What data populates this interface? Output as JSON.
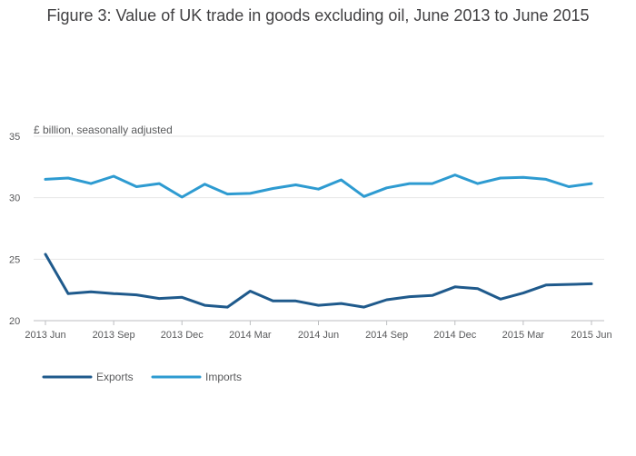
{
  "title": "Figure 3: Value of UK trade in goods excluding oil, June 2013 to June 2015",
  "chart_data": {
    "type": "line",
    "title": "Figure 3: Value of UK trade in goods excluding oil, June 2013 to June 2015",
    "ylabel": "£ billion, seasonally adjusted",
    "xlabel": "",
    "ylim": [
      20,
      35
    ],
    "yticks": [
      "20",
      "25",
      "30",
      "35"
    ],
    "x": [
      "2013 Jun",
      "2013 Jul",
      "2013 Aug",
      "2013 Sep",
      "2013 Oct",
      "2013 Nov",
      "2013 Dec",
      "2014 Jan",
      "2014 Feb",
      "2014 Mar",
      "2014 Apr",
      "2014 May",
      "2014 Jun",
      "2014 Jul",
      "2014 Aug",
      "2014 Sep",
      "2014 Oct",
      "2014 Nov",
      "2014 Dec",
      "2015 Jan",
      "2015 Feb",
      "2015 Mar",
      "2015 Apr",
      "2015 May",
      "2015 Jun"
    ],
    "xtick_labels": [
      "2013 Jun",
      "2013 Sep",
      "2013 Dec",
      "2014 Mar",
      "2014 Jun",
      "2014 Sep",
      "2014 Dec",
      "2015 Mar",
      "2015 Jun"
    ],
    "grid": true,
    "legend": "bottom-left",
    "series": [
      {
        "name": "Exports",
        "color": "#1f5a8c",
        "values": [
          25.4,
          22.2,
          22.35,
          22.2,
          22.1,
          21.8,
          21.9,
          21.25,
          21.1,
          22.4,
          21.6,
          21.6,
          21.25,
          21.4,
          21.1,
          21.7,
          21.95,
          22.05,
          22.75,
          22.6,
          21.75,
          22.25,
          22.9,
          22.95,
          23.0
        ]
      },
      {
        "name": "Imports",
        "color": "#2e9bd1",
        "values": [
          31.5,
          31.6,
          31.15,
          31.75,
          30.9,
          31.15,
          30.05,
          31.1,
          30.3,
          30.35,
          30.75,
          31.05,
          30.7,
          31.45,
          30.1,
          30.8,
          31.15,
          31.15,
          31.85,
          31.15,
          31.6,
          31.65,
          31.5,
          30.9,
          31.15
        ]
      }
    ]
  }
}
